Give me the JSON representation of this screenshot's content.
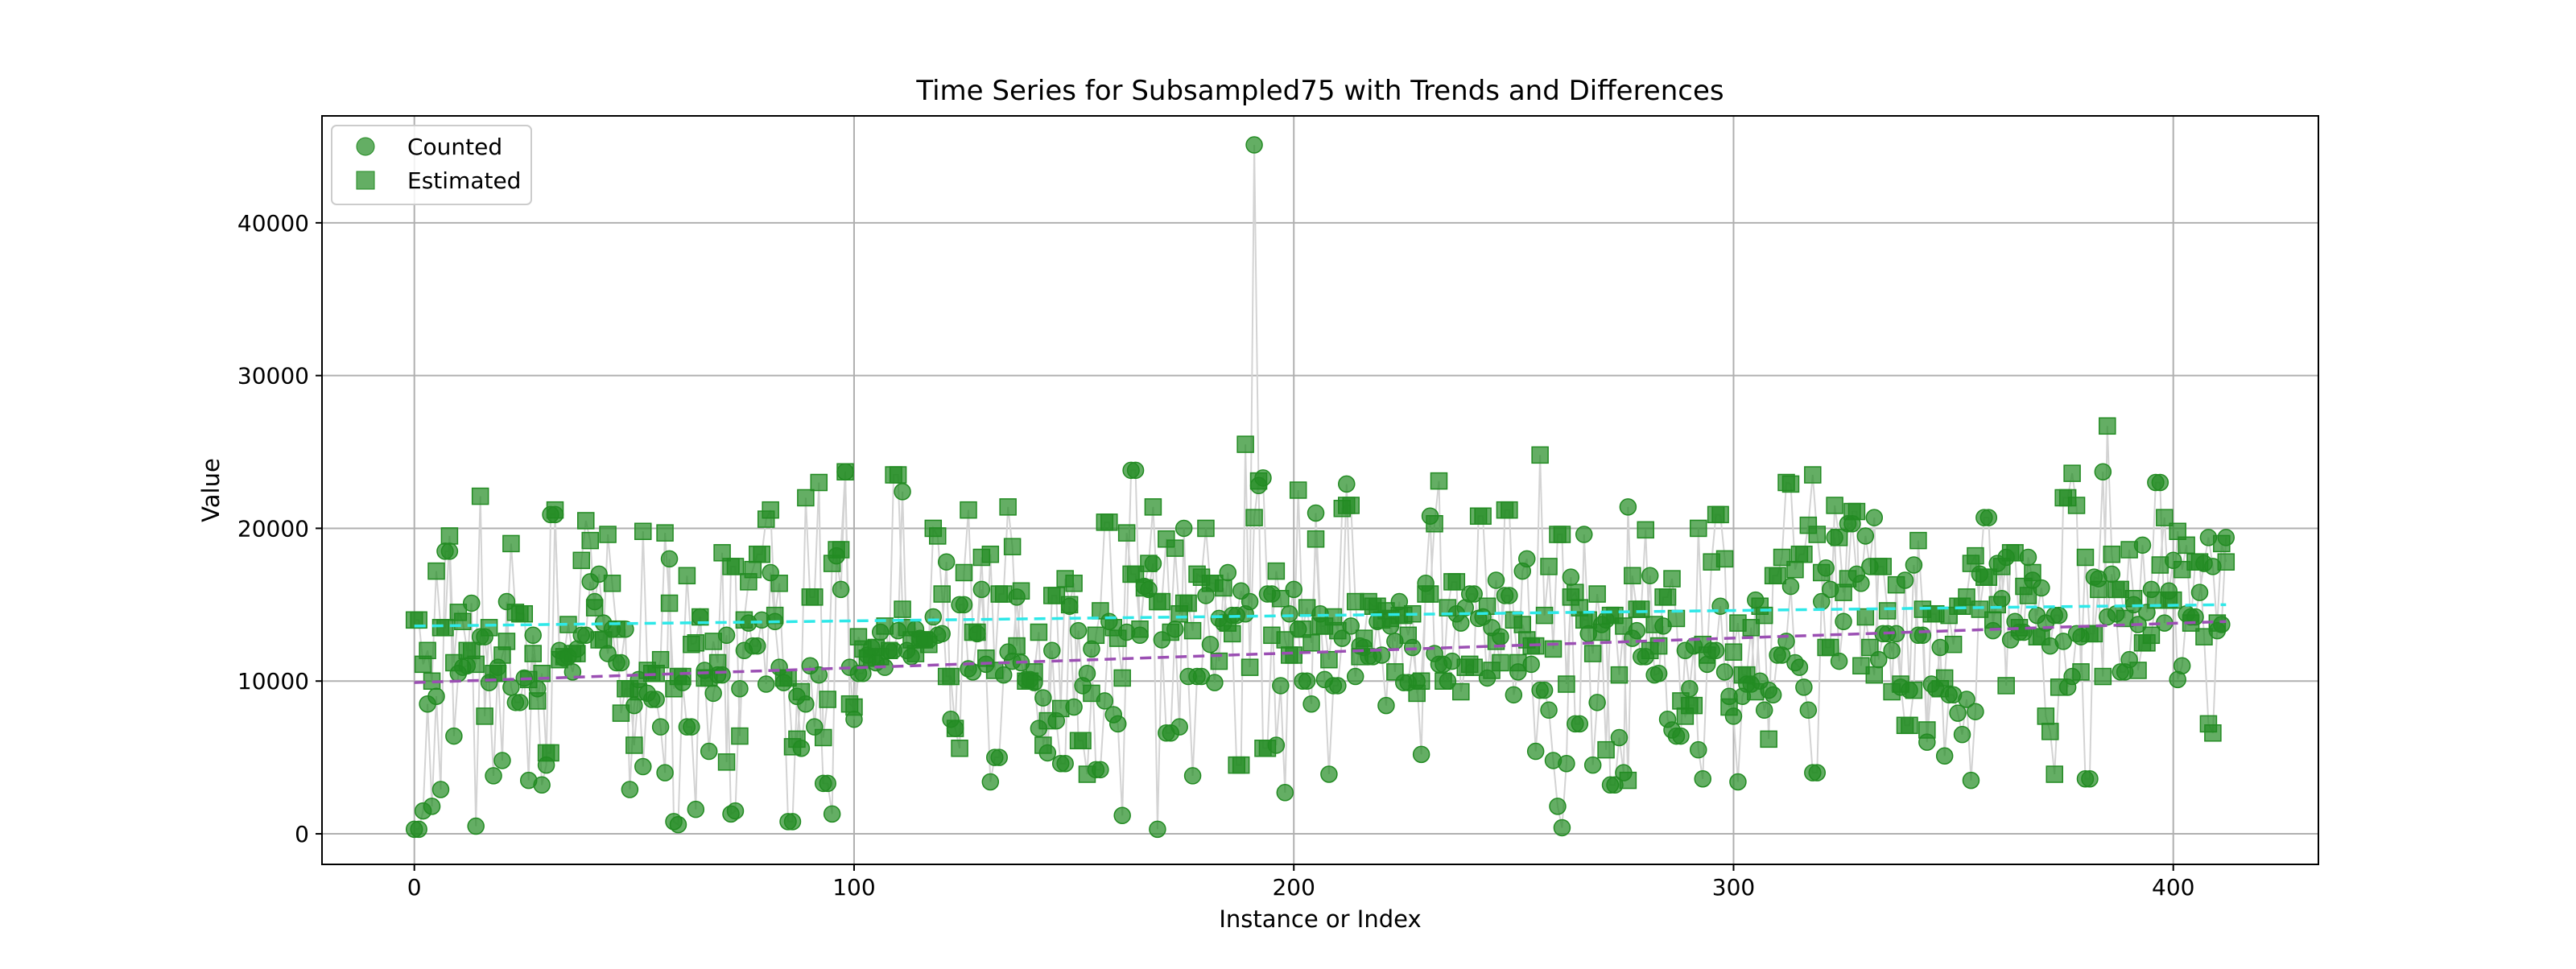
{
  "chart_data": {
    "type": "scatter",
    "title": "Time Series for Subsampled75 with Trends and Differences",
    "xlabel": "Instance or Index",
    "ylabel": "Value",
    "xlim": [
      -21,
      433
    ],
    "ylim": [
      -2000,
      47000
    ],
    "x_ticks": [
      0,
      100,
      200,
      300,
      400
    ],
    "y_ticks": [
      0,
      10000,
      20000,
      30000,
      40000
    ],
    "grid": true,
    "legend_position": "top-left",
    "legend": [
      "Counted",
      "Estimated"
    ],
    "n_points": 413,
    "counted_seeds": [
      300,
      1500,
      8500,
      1800,
      9000,
      2900,
      18500,
      6400,
      10500,
      10900,
      11000,
      15100,
      500,
      12900,
      9900,
      3800,
      10900,
      4800,
      15200,
      9600,
      8600,
      10200,
      3500,
      13000,
      9500,
      3200,
      4500,
      20900,
      12000,
      11500,
      11600,
      10600,
      12100,
      13000,
      16500,
      15200,
      17000,
      13800,
      11800,
      13400,
      11200,
      13400,
      2900,
      8400,
      10100,
      4400,
      9200,
      8800,
      7000,
      4000,
      18000,
      800,
      600,
      9900,
      7000,
      1600,
      14200,
      10700,
      5400,
      9200,
      10400,
      13000,
      1300,
      1500,
      9500,
      12000,
      13800,
      12300,
      14000,
      9800,
      17100,
      13900,
      10900,
      9900,
      800,
      9000,
      5600,
      8500,
      11000,
      7000,
      10400,
      3300,
      1300,
      18200,
      16000,
      23700,
      10900,
      7500,
      10500,
      11700,
      12200,
      11200,
      13200,
      10900,
      12000,
      13300,
      22400,
      12000,
      11600,
      13400,
      12800,
      12700,
      14200,
      13000,
      13100,
      17800,
      7500,
      6900,
      15000,
      10800,
      10600,
      13100,
      16000,
      11100,
      3400,
      5000,
      10400,
      11900,
      11300,
      15500,
      11200,
      10100,
      9900,
      6900,
      8900,
      5300,
      12000,
      7400,
      4600,
      14900,
      8300,
      13300,
      9700,
      10500,
      12100,
      4200,
      8700,
      13900,
      7800,
      7200,
      1200,
      13200,
      23800,
      13000,
      16200,
      16000,
      17700,
      300,
      12700,
      6600,
      13400,
      7000,
      20000,
      10300,
      3800,
      10300,
      15600,
      12400,
      9900,
      14100,
      13800,
      17100,
      14300,
      15900,
      14400,
      15200,
      45100,
      22800,
      23300,
      15700,
      5800,
      9700,
      2700,
      14400,
      16000,
      13400,
      10000,
      8500,
      21000,
      14400,
      10100,
      3900,
      9700,
      12800,
      22900,
      13600,
      10300,
      12300,
      12200,
      11600,
      13900,
      11700,
      8400,
      13600,
      12600,
      15200,
      9900,
      12200,
      10000,
      5200,
      16400,
      20800,
      11800,
      11100,
      10000,
      11300,
      14400,
      13800,
      14800,
      15700,
      14100,
      14200,
      10200,
      13500,
      16600,
      12900,
      15600,
      9100,
      10600,
      17200,
      18000,
      11100,
      5400,
      9400,
      8100,
      4800,
      1800,
      400,
      4600,
      16800,
      7200,
      19600,
      13100,
      4500,
      8600,
      13700,
      14000,
      3200,
      6300,
      4000,
      21400,
      12800,
      13300,
      11600,
      16900,
      10400,
      10500,
      13600,
      7500,
      6800,
      6400,
      12000,
      9500,
      12300,
      5500,
      3600,
      11100,
      12000,
      14900,
      10600,
      9000,
      7700,
      3400,
      9000,
      9800,
      15300,
      10000,
      8100,
      9400,
      9100,
      11700,
      12600,
      16200,
      11200,
      10900,
      9600,
      8100,
      4000,
      15200,
      17400,
      16000,
      19400,
      11300,
      13900,
      20300,
      17000,
      16400,
      19500,
      17500,
      20700,
      11400,
      13100,
      12000,
      13100,
      9600,
      16600,
      9400,
      17600,
      13000,
      6000,
      9800,
      9500,
      12200,
      5100,
      9100,
      7900,
      6500,
      8800,
      3500,
      8000,
      17000,
      20700,
      13300,
      17700,
      15400,
      18100,
      12700,
      13900,
      13200,
      18100,
      16600,
      14300,
      16100,
      13800,
      12300,
      14300,
      12600,
      9600,
      10300,
      13100,
      12900,
      3600,
      16800,
      16700,
      23700,
      14200,
      17000,
      14400,
      10600,
      11400,
      15000,
      13700,
      18900,
      14500,
      16000,
      23000,
      13800,
      15900,
      17900,
      10100,
      11000,
      14400,
      14200,
      15800,
      17700,
      19400,
      17500,
      13300,
      13700,
      19400
    ],
    "estimated_seeds": [
      14000,
      11100,
      12000,
      10000,
      17200,
      13500,
      19500,
      11200,
      14500,
      13900,
      12000,
      11100,
      22100,
      7700,
      13500,
      10500,
      11700,
      12600,
      19000,
      14500,
      14400,
      10100,
      11800,
      8700,
      10500,
      5300,
      21200,
      11400,
      11600,
      13700,
      11800,
      17900,
      20500,
      19200,
      14800,
      12700,
      19600,
      16400,
      13400,
      7900,
      9500,
      5800,
      9300,
      19800,
      10700,
      10500,
      11400,
      19700,
      15100,
      9500,
      10300,
      16900,
      12400,
      12500,
      14200,
      10200,
      12600,
      11200,
      18400,
      4700,
      17500,
      6400,
      14000,
      16500,
      17300,
      18300,
      20600,
      21200,
      14300,
      16400,
      10200,
      5700,
      6200,
      9300,
      22000,
      15500,
      23000,
      6300,
      8800,
      17700,
      18600,
      23700,
      8500,
      8300,
      12900,
      12100,
      11500,
      12200,
      11600,
      13600,
      12000,
      23500,
      14700,
      13500,
      12700,
      11800,
      12700,
      12400,
      20000,
      19500,
      15700,
      10300,
      6900,
      5600,
      17100,
      21200,
      13200,
      18100,
      11500,
      18300,
      10700,
      15700,
      21400,
      18800,
      12300,
      15900,
      10000,
      10600,
      13200,
      5800,
      7400,
      15600,
      8200,
      16700,
      15000,
      16400,
      6100,
      3900,
      9200,
      13000,
      14600,
      20400,
      13500,
      12800,
      10200,
      19700,
      17000,
      13400,
      16100,
      17700,
      21400,
      15200,
      19300,
      13200,
      18700,
      14400,
      15100,
      13300,
      17000,
      16800,
      20000,
      16400,
      11300,
      16100,
      13800,
      13100,
      4500,
      25500,
      10900,
      20700,
      23100,
      5600,
      13000,
      17200,
      15400,
      12700,
      11700,
      22500,
      13400,
      14800,
      12500,
      19300,
      13600,
      11400,
      14200,
      13300,
      21300,
      21500,
      15200,
      11600,
      12800,
      15200,
      14900,
      14000,
      14600,
      14100,
      10600,
      14300,
      13000,
      14400,
      9200,
      10000,
      15700,
      20300,
      23100,
      10000,
      14800,
      16500,
      9300,
      10900,
      11100,
      10900,
      20800,
      14900,
      10700,
      12600,
      11200,
      21200,
      14000,
      11200,
      13700,
      12700,
      12300,
      24800,
      14300,
      17500,
      12100,
      19600,
      9800,
      15500,
      15800,
      14800,
      14000,
      11800,
      15700,
      13200,
      5500,
      14300,
      10400,
      13600,
      3500,
      16900,
      14700,
      19900,
      12000,
      13700,
      12300,
      15500,
      16700,
      14100,
      8700,
      7700,
      8400,
      20000,
      12400,
      11700,
      17800,
      20900,
      18000,
      8300,
      11900,
      13800,
      10400,
      13500,
      9300,
      14900,
      14300,
      6200,
      16900,
      18100,
      23000,
      22900,
      17300,
      18300,
      20200,
      23500,
      19600,
      17100,
      12200,
      21500,
      19400,
      15800,
      16700,
      21100,
      11000,
      14200,
      12200,
      10400,
      17500,
      14600,
      9300,
      16300,
      9800,
      7100,
      9400,
      19200,
      14700,
      6800,
      14400,
      9500,
      10200,
      14300,
      12400,
      14900,
      15500,
      17700,
      18200,
      14700,
      16800,
      14000,
      15000,
      17500,
      9700,
      18400,
      13500,
      16200,
      15600,
      17100,
      12900,
      7700,
      6700,
      3900,
      9600,
      22000,
      23600,
      21500,
      10600,
      18100,
      13100,
      16000,
      10300,
      26700,
      18300,
      16000,
      14100,
      18600,
      15400,
      10700,
      12500,
      13000,
      15300,
      17600,
      20700,
      15300,
      19800,
      17300,
      18900,
      13800,
      17800,
      12900,
      7200,
      6600,
      13800,
      19000,
      17800
    ],
    "series": [
      {
        "name": "Counted",
        "marker": "circle",
        "color": "#228b22"
      },
      {
        "name": "Estimated",
        "marker": "square",
        "color": "#228b22"
      },
      {
        "name": "Counted trend",
        "style": "dashed",
        "color": "#9b4fb3",
        "start": 9900,
        "end": 13900
      },
      {
        "name": "Estimated trend",
        "style": "dashed",
        "color": "#2ee8e8",
        "start": 13600,
        "end": 15000
      }
    ]
  },
  "colors": {
    "marker": "#228b22",
    "connector": "#d3d3d3",
    "grid": "#b0b0b0"
  }
}
